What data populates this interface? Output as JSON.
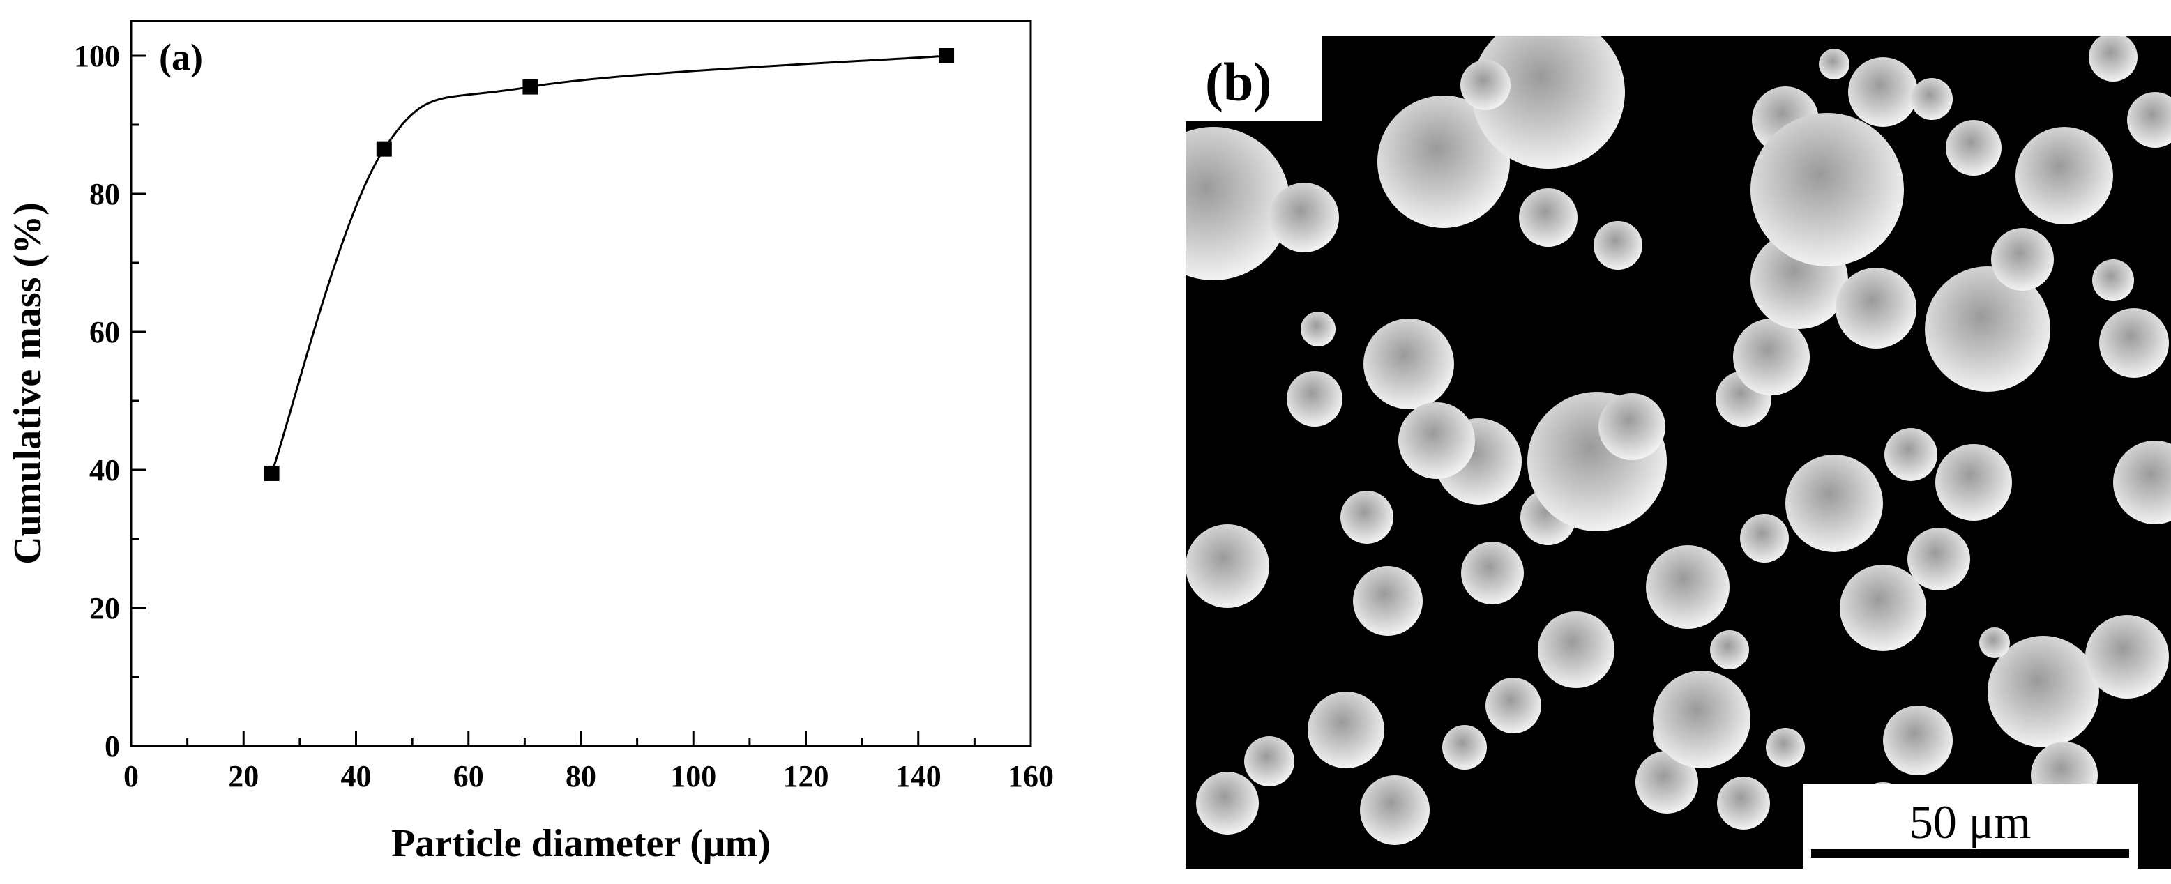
{
  "chart_data": {
    "type": "line",
    "panel_label": "(a)",
    "xlabel": "Particle diameter (μm)",
    "ylabel": "Cumulative mass (%)",
    "xlim": [
      0,
      160
    ],
    "ylim": [
      0,
      100
    ],
    "x_ticks": [
      0,
      20,
      40,
      60,
      80,
      100,
      120,
      140,
      160
    ],
    "y_ticks": [
      0,
      20,
      40,
      60,
      80,
      100
    ],
    "grid": false,
    "smooth_curve": true,
    "marker": "square",
    "series": [
      {
        "x": [
          25,
          45,
          71,
          145
        ],
        "y": [
          39.5,
          86.5,
          95.5,
          100
        ]
      }
    ]
  },
  "micrograph": {
    "panel_label": "(b)",
    "scale_bar_label": "50 μm",
    "description_colors": {
      "background": "#000000",
      "particles": "#cfcfcf"
    }
  }
}
